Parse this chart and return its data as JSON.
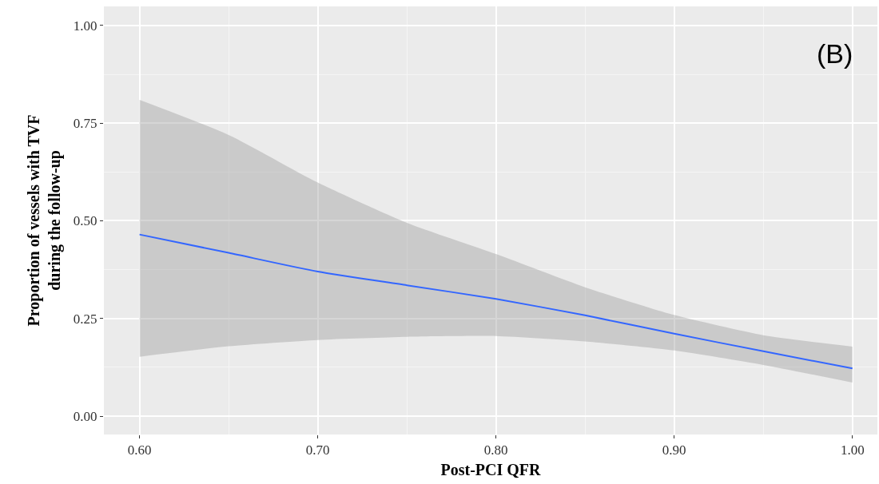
{
  "chart_data": {
    "type": "line",
    "xlabel": "Post-PCI QFR",
    "ylabel": "Proportion of vessels with TVF\nduring the follow-up",
    "annotations": [
      "(B)"
    ],
    "x": [
      0.6,
      0.65,
      0.7,
      0.75,
      0.8,
      0.85,
      0.9,
      0.95,
      1.0
    ],
    "series": [
      {
        "color": "#3366ff",
        "values": [
          0.465,
          0.418,
          0.37,
          0.335,
          0.3,
          0.258,
          0.211,
          0.166,
          0.122
        ],
        "lower": [
          0.152,
          0.179,
          0.195,
          0.203,
          0.205,
          0.191,
          0.168,
          0.131,
          0.086
        ],
        "upper": [
          0.81,
          0.72,
          0.598,
          0.495,
          0.415,
          0.33,
          0.259,
          0.207,
          0.178
        ]
      }
    ],
    "xlim": [
      0.58,
      1.014
    ],
    "ylim": [
      -0.047,
      1.049
    ],
    "xticks": [
      {
        "value": 0.6,
        "label": "0.60"
      },
      {
        "value": 0.7,
        "label": "0.70"
      },
      {
        "value": 0.8,
        "label": "0.80"
      },
      {
        "value": 0.9,
        "label": "0.90"
      },
      {
        "value": 1.0,
        "label": "1.00"
      }
    ],
    "yticks": [
      {
        "value": 0,
        "label": "0.00"
      },
      {
        "value": 0.25,
        "label": "0.25"
      },
      {
        "value": 0.5,
        "label": "0.50"
      },
      {
        "value": 0.75,
        "label": "0.75"
      },
      {
        "value": 1.0,
        "label": "1.00"
      }
    ],
    "grid": true,
    "line_style": "solid"
  }
}
